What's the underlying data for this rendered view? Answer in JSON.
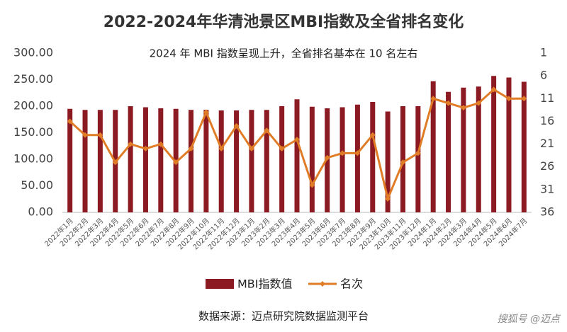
{
  "chart_data": {
    "type": "bar_line",
    "title": "2022-2024年华清池景区MBI指数及全省排名变化",
    "subtitle": "2024 年 MBI 指数呈现上升，全省排名基本在 10 名左右",
    "source": "数据来源：迈点研究院数据监测平台",
    "watermark": "搜狐号 @迈点",
    "categories": [
      "2022年1月",
      "2022年2月",
      "2022年3月",
      "2022年4月",
      "2022年5月",
      "2022年6月",
      "2022年7月",
      "2022年8月",
      "2022年9月",
      "2022年10月",
      "2022年11月",
      "2022年12月",
      "2023年1月",
      "2023年2月",
      "2023年3月",
      "2023年4月",
      "2023年5月",
      "2023年6月",
      "2023年7月",
      "2023年8月",
      "2023年9月",
      "2023年10月",
      "2023年11月",
      "2023年12月",
      "2024年1月",
      "2024年2月",
      "2024年3月",
      "2024年4月",
      "2024年5月",
      "2024年6月",
      "2024年7月"
    ],
    "series": [
      {
        "name": "MBI指数值",
        "type": "bar",
        "color": "#8b1a22",
        "values": [
          195,
          193,
          193,
          193,
          200,
          198,
          196,
          195,
          193,
          193,
          192,
          192,
          193,
          193,
          200,
          213,
          199,
          196,
          198,
          203,
          208,
          190,
          200,
          200,
          247,
          227,
          235,
          237,
          257,
          254,
          246
        ]
      },
      {
        "name": "名次",
        "type": "line",
        "axis": "y2",
        "color": "#e07b26",
        "values": [
          16,
          19,
          19,
          25,
          21,
          22,
          21,
          25,
          22,
          14,
          22,
          17,
          22,
          18,
          22,
          20,
          30,
          24,
          23,
          23,
          19,
          33,
          25,
          23,
          11,
          12,
          13,
          12,
          9,
          11,
          11
        ]
      }
    ],
    "ylim": [
      0,
      300
    ],
    "yticks": [
      {
        "value": 0,
        "label": "0.00"
      },
      {
        "value": 50,
        "label": "50.00"
      },
      {
        "value": 100,
        "label": "100.00"
      },
      {
        "value": 150,
        "label": "150.00"
      },
      {
        "value": 200,
        "label": "200.00"
      },
      {
        "value": 250,
        "label": "250.00"
      },
      {
        "value": 300,
        "label": "300.00"
      }
    ],
    "y2lim": [
      1,
      36
    ],
    "y2_inverted": true,
    "y2ticks": [
      1,
      6,
      11,
      16,
      21,
      26,
      31,
      36
    ],
    "legend": "bottom"
  }
}
